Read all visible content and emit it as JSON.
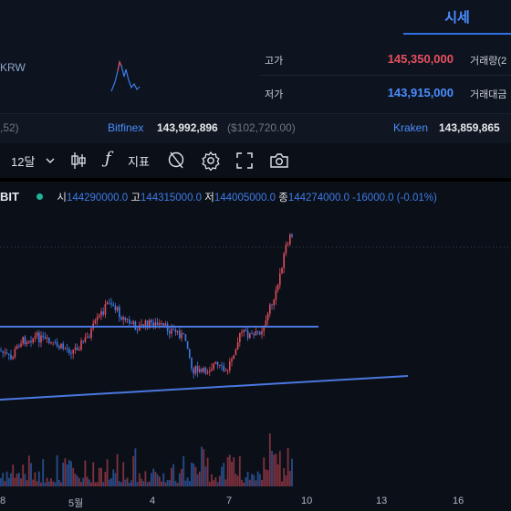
{
  "nav": {
    "market_tab": "시세"
  },
  "info": {
    "ticker_fragment": "KRW",
    "high_label": "고가",
    "high_value": "145,350,000",
    "low_label": "저가",
    "low_value": "143,915,000",
    "volume_label": "거래량(2",
    "amount_label": "거래대금"
  },
  "exchanges": {
    "first_fragment": ",52)",
    "bitfinex_name": "Bitfinex",
    "bitfinex_krw": "143,992,896",
    "bitfinex_usd": "($102,720.00)",
    "kraken_name": "Kraken",
    "kraken_krw": "143,859,865"
  },
  "toolbar": {
    "interval": "12달",
    "indicator_label": "지표"
  },
  "legend": {
    "symbol_fragment": "BIT",
    "open_label": "시",
    "open_value": "144290000.0",
    "high_label": "고",
    "high_value": "144315000.0",
    "low_label": "저",
    "low_value": "144005000.0",
    "close_label": "종",
    "close_value": "144274000.0",
    "change": "-16000.0 (-0.01%)"
  },
  "x_axis": {
    "ticks": [
      "8",
      "5월",
      "4",
      "7",
      "10",
      "13",
      "16"
    ]
  },
  "colors": {
    "up": "#e04d5e",
    "down": "#3f7be8",
    "accent": "#2f6fe0",
    "trend_line": "#4a78e0",
    "bg": "#0b1018"
  },
  "chart_data": {
    "type": "candlestick",
    "x_ticks": [
      "8",
      "5월",
      "4",
      "7",
      "10",
      "13",
      "16"
    ],
    "open": 144290000.0,
    "high": 144315000.0,
    "low": 144005000.0,
    "close": 144274000.0,
    "change": -16000.0,
    "change_pct": -0.01,
    "trend_lines": 2,
    "volume_bars": true
  }
}
